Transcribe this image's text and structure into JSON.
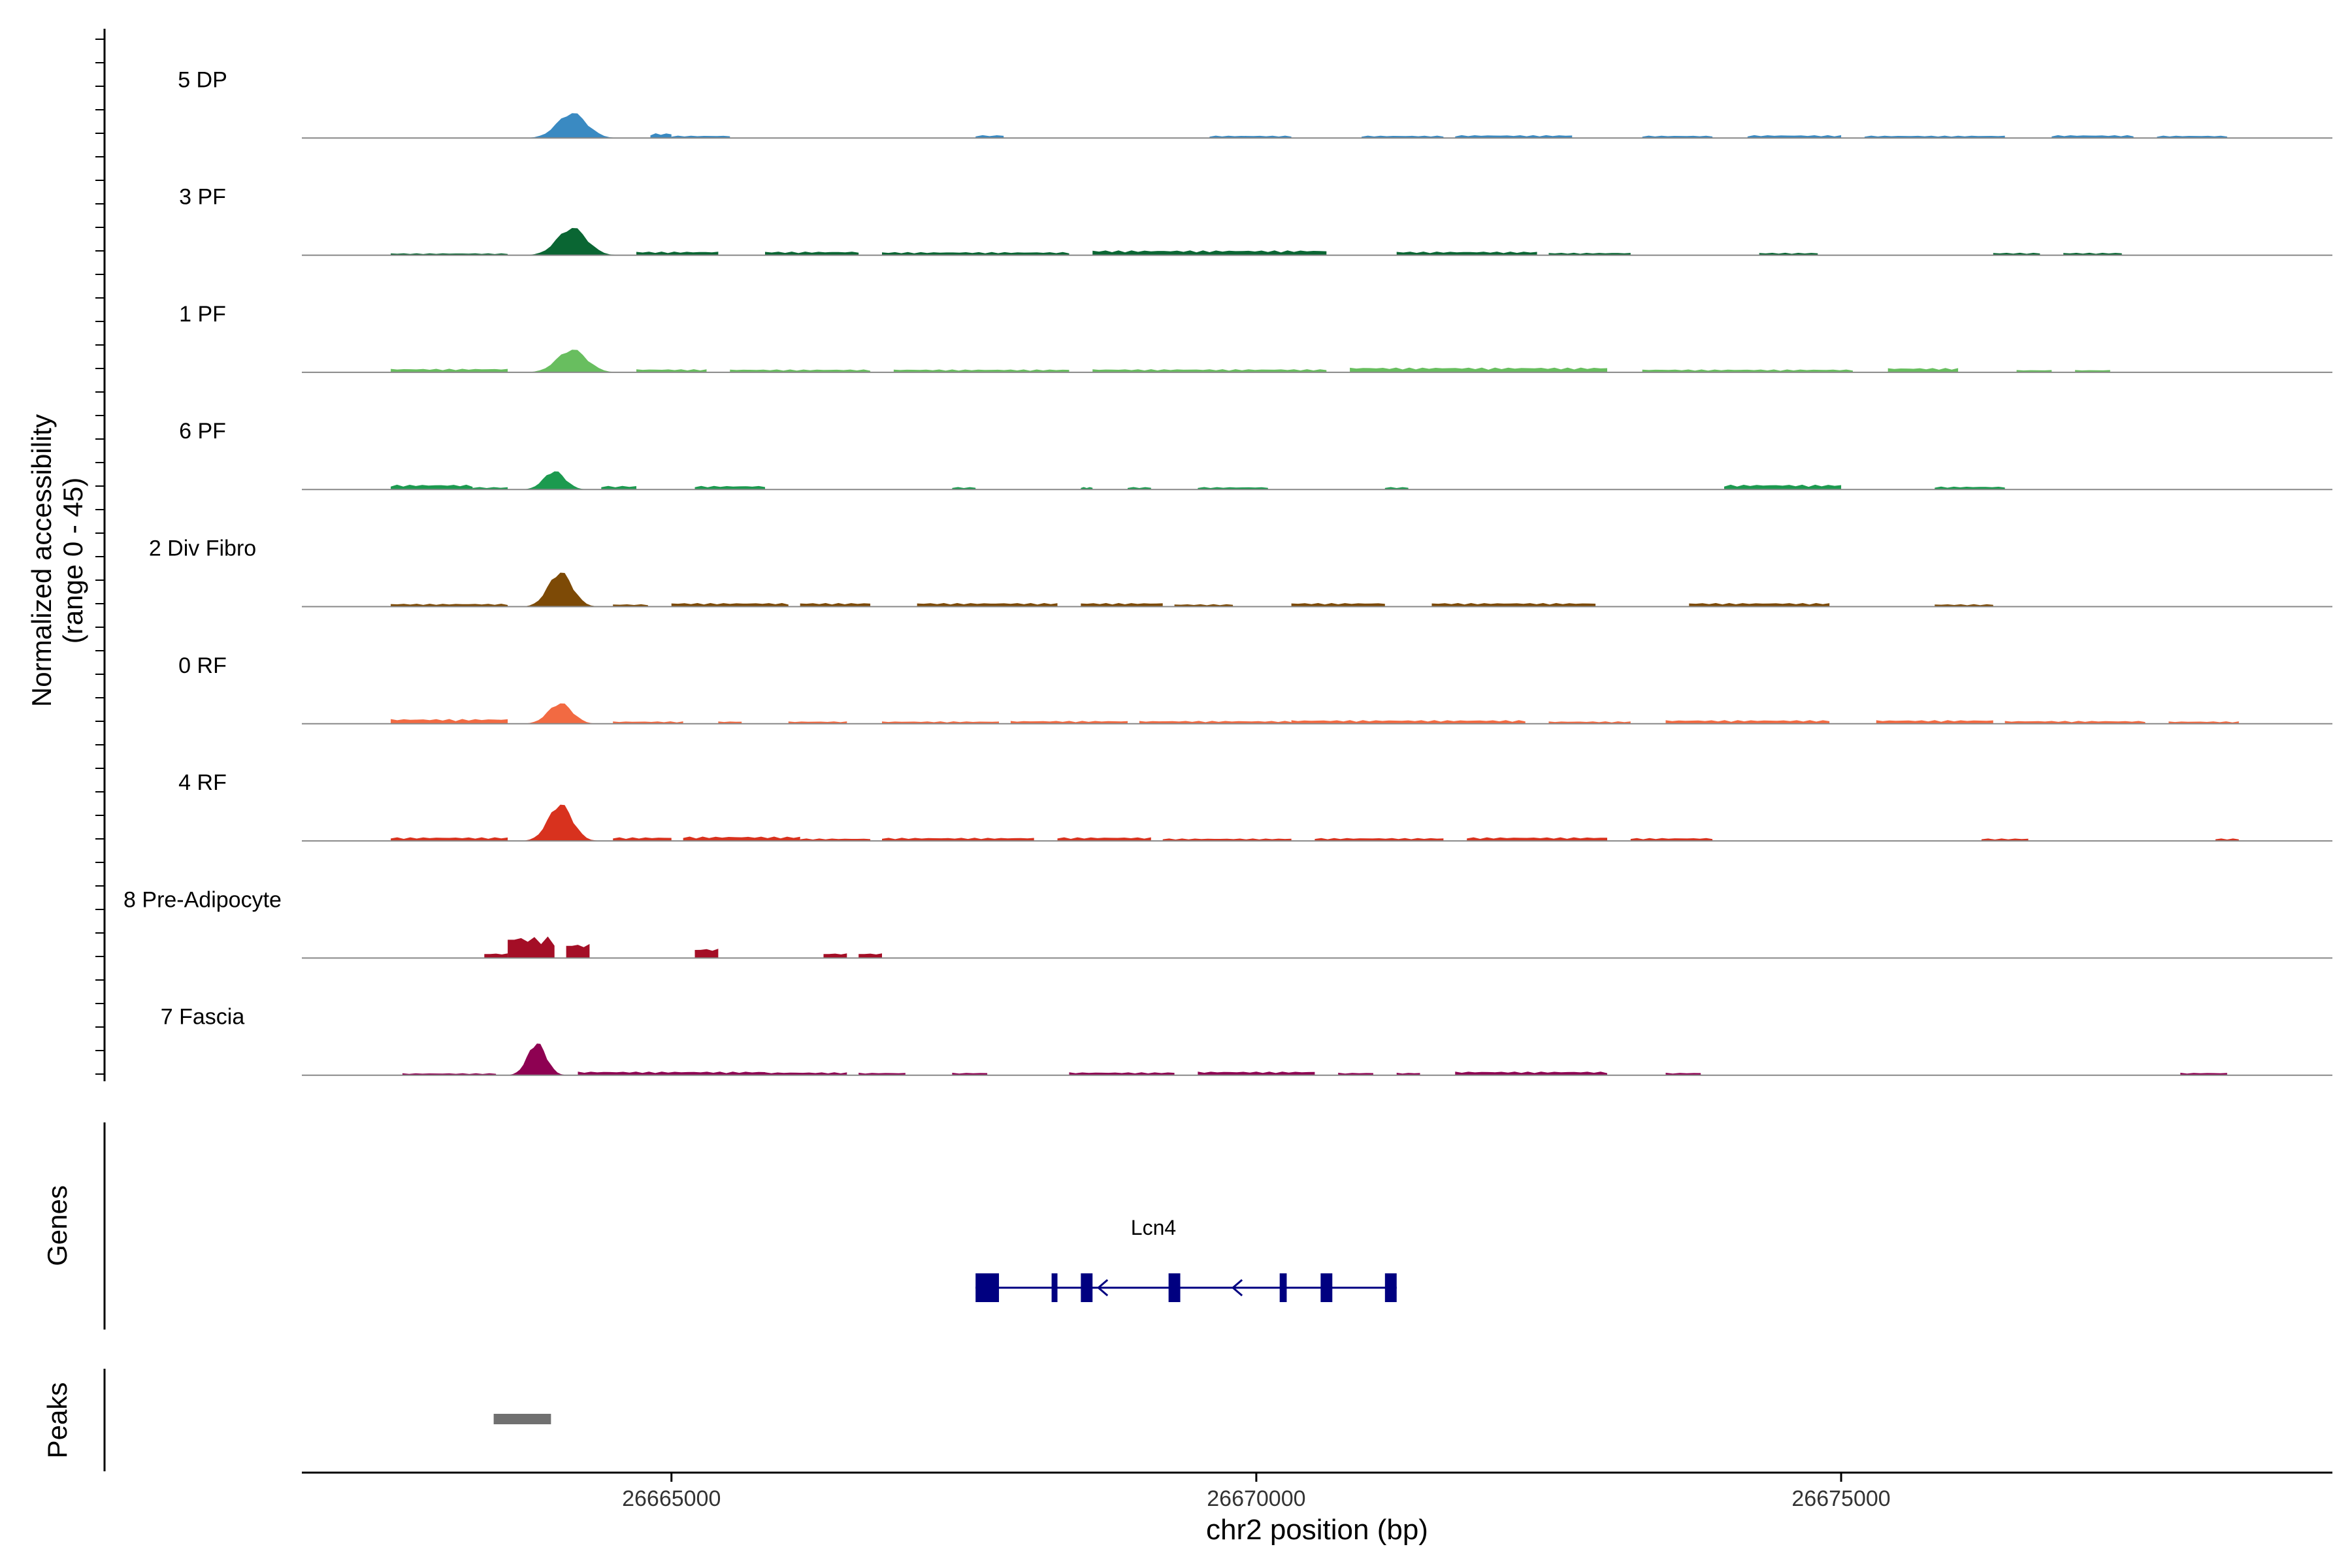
{
  "chart_data": {
    "type": "area",
    "title": "",
    "ylabel_line1": "Normalized accessibility",
    "ylabel_line2": "(range 0 - 45)",
    "yrange": [
      0,
      45
    ],
    "xlabel": "chr2 position (bp)",
    "xlim": [
      26661840,
      26679200
    ],
    "x_ticks": [
      26665000,
      26670000,
      26675000
    ],
    "x_tick_labels": [
      "26665000",
      "26670000",
      "26675000"
    ],
    "tracks": [
      {
        "name": "5 DP",
        "color": "#3A8AC2",
        "peaks": [
          [
            26663600,
            26664700,
            11,
            3
          ],
          [
            26664820,
            26665000,
            2,
            1
          ],
          [
            26665000,
            26665500,
            1,
            1
          ],
          [
            26667600,
            26667840,
            1.2,
            1
          ],
          [
            26669600,
            26670300,
            1,
            1
          ],
          [
            26670900,
            26671600,
            1,
            1
          ],
          [
            26671700,
            26672700,
            1.2,
            1
          ],
          [
            26673300,
            26673900,
            1,
            1
          ],
          [
            26674200,
            26675000,
            1.2,
            1
          ],
          [
            26675200,
            26676400,
            1,
            1
          ],
          [
            26676800,
            26677500,
            1.2,
            1
          ],
          [
            26677700,
            26678300,
            1,
            1
          ]
        ]
      },
      {
        "name": "3 PF",
        "color": "#0A6633",
        "peaks": [
          [
            26662600,
            26663600,
            0.8,
            1
          ],
          [
            26663600,
            26664700,
            12,
            3
          ],
          [
            26664700,
            26665400,
            1.5,
            1
          ],
          [
            26665800,
            26666600,
            1.5,
            1
          ],
          [
            26666800,
            26668400,
            1.3,
            1
          ],
          [
            26668600,
            26670600,
            2,
            1
          ],
          [
            26671200,
            26672400,
            1.5,
            1
          ],
          [
            26672500,
            26673200,
            1,
            1
          ],
          [
            26674300,
            26674800,
            1,
            1
          ],
          [
            26676300,
            26676700,
            1,
            1
          ],
          [
            26676900,
            26677400,
            1,
            1
          ]
        ]
      },
      {
        "name": "1 PF",
        "color": "#68BE5F",
        "peaks": [
          [
            26662600,
            26663600,
            1.5,
            1
          ],
          [
            26663600,
            26664700,
            10,
            3
          ],
          [
            26664700,
            26665300,
            1.3,
            1
          ],
          [
            26665500,
            26666700,
            1.2,
            1
          ],
          [
            26666900,
            26668400,
            1.2,
            1
          ],
          [
            26668600,
            26670600,
            1.3,
            1
          ],
          [
            26670800,
            26673000,
            2,
            1
          ],
          [
            26673300,
            26675100,
            1.2,
            1
          ],
          [
            26675400,
            26676000,
            1.8,
            1
          ],
          [
            26676500,
            26676800,
            1,
            1
          ],
          [
            26677000,
            26677300,
            1,
            1
          ]
        ]
      },
      {
        "name": "6 PF",
        "color": "#1C9A4F",
        "peaks": [
          [
            26662600,
            26663300,
            2,
            1
          ],
          [
            26663300,
            26663600,
            1,
            1
          ],
          [
            26663600,
            26664400,
            8,
            3
          ],
          [
            26664400,
            26664700,
            1.5,
            1
          ],
          [
            26665200,
            26665800,
            1.5,
            1
          ],
          [
            26667400,
            26667600,
            1,
            1
          ],
          [
            26668500,
            26668600,
            1,
            1
          ],
          [
            26668900,
            26669100,
            1,
            1
          ],
          [
            26669500,
            26670100,
            1,
            1
          ],
          [
            26671100,
            26671300,
            1,
            1
          ],
          [
            26674000,
            26675000,
            2,
            1
          ],
          [
            26675800,
            26676400,
            1.2,
            1
          ]
        ]
      },
      {
        "name": "2 Div Fibro",
        "color": "#7D4A06",
        "peaks": [
          [
            26662600,
            26663600,
            1.2,
            1
          ],
          [
            26663600,
            26664500,
            15,
            3
          ],
          [
            26664500,
            26664800,
            1,
            1
          ],
          [
            26665000,
            26666000,
            1.5,
            1
          ],
          [
            26666100,
            26666700,
            1.5,
            1
          ],
          [
            26667100,
            26668300,
            1.5,
            1
          ],
          [
            26668500,
            26669200,
            1.5,
            1
          ],
          [
            26669300,
            26669800,
            1,
            1
          ],
          [
            26670300,
            26671100,
            1.5,
            1
          ],
          [
            26671500,
            26672900,
            1.5,
            1
          ],
          [
            26673700,
            26674900,
            1.5,
            1
          ],
          [
            26675800,
            26676300,
            1,
            1
          ]
        ]
      },
      {
        "name": "0 RF",
        "color": "#F26A42",
        "peaks": [
          [
            26662600,
            26663600,
            2,
            1
          ],
          [
            26663600,
            26664500,
            9,
            3
          ],
          [
            26664500,
            26665100,
            1,
            1
          ],
          [
            26665400,
            26665600,
            1,
            1
          ],
          [
            26666000,
            26666500,
            1,
            1
          ],
          [
            26666800,
            26667800,
            1,
            1
          ],
          [
            26667900,
            26668900,
            1.2,
            1
          ],
          [
            26669000,
            26670300,
            1.2,
            1
          ],
          [
            26670300,
            26672300,
            1.5,
            1
          ],
          [
            26672500,
            26673200,
            1,
            1
          ],
          [
            26673500,
            26674900,
            1.5,
            1
          ],
          [
            26675300,
            26676300,
            1.5,
            1
          ],
          [
            26676400,
            26677600,
            1.2,
            1
          ],
          [
            26677800,
            26678400,
            1,
            1
          ]
        ]
      },
      {
        "name": "4 RF",
        "color": "#D8321E",
        "peaks": [
          [
            26662600,
            26663600,
            1.5,
            1
          ],
          [
            26663600,
            26664500,
            16,
            3
          ],
          [
            26664500,
            26665000,
            1.5,
            1
          ],
          [
            26665100,
            26666100,
            1.8,
            1
          ],
          [
            26666100,
            26666700,
            1,
            1
          ],
          [
            26666800,
            26668100,
            1.3,
            1
          ],
          [
            26668300,
            26669100,
            1.5,
            1
          ],
          [
            26669200,
            26670300,
            1,
            1
          ],
          [
            26670500,
            26671600,
            1.2,
            1
          ],
          [
            26671800,
            26673000,
            1.5,
            1
          ],
          [
            26673200,
            26673900,
            1.2,
            1
          ],
          [
            26676200,
            26676600,
            1,
            1
          ],
          [
            26678200,
            26678400,
            1,
            1
          ]
        ]
      },
      {
        "name": "8 Pre-Adipocyte",
        "color": "#A40E26",
        "peaks": [
          [
            26663400,
            26663600,
            2,
            1
          ],
          [
            26663600,
            26664000,
            9,
            1
          ],
          [
            26664100,
            26664300,
            6,
            1
          ],
          [
            26665200,
            26665400,
            4,
            1
          ],
          [
            26666300,
            26666500,
            2,
            1
          ],
          [
            26666600,
            26666800,
            2,
            1
          ]
        ]
      },
      {
        "name": "7 Fascia",
        "color": "#8E0152",
        "peaks": [
          [
            26662700,
            26663500,
            0.8,
            1
          ],
          [
            26663500,
            26664200,
            14,
            3
          ],
          [
            26664200,
            26665800,
            1.5,
            1
          ],
          [
            26665800,
            26666500,
            1.2,
            1
          ],
          [
            26666600,
            26667000,
            1,
            1
          ],
          [
            26667400,
            26667700,
            1,
            1
          ],
          [
            26668400,
            26669300,
            1.2,
            1
          ],
          [
            26669500,
            26670500,
            1.5,
            1
          ],
          [
            26670700,
            26671000,
            1,
            1
          ],
          [
            26671200,
            26671400,
            1,
            1
          ],
          [
            26671700,
            26673000,
            1.5,
            1
          ],
          [
            26673500,
            26673800,
            1,
            1
          ],
          [
            26677900,
            26678300,
            1,
            1
          ]
        ]
      }
    ],
    "genes_label": "Genes",
    "gene": {
      "name": "Lcn4",
      "start": 26667600,
      "end": 26671200,
      "strand": "-",
      "exons": [
        [
          26667600,
          26667800
        ],
        [
          26668250,
          26668300
        ],
        [
          26668500,
          26668600
        ],
        [
          26669250,
          26669350
        ],
        [
          26670200,
          26670260
        ],
        [
          26670550,
          26670650
        ],
        [
          26671100,
          26671200
        ]
      ],
      "color": "#000080"
    },
    "peaks_label": "Peaks",
    "peak_regions": [
      [
        26663480,
        26663970
      ]
    ],
    "peak_color": "#707070"
  }
}
